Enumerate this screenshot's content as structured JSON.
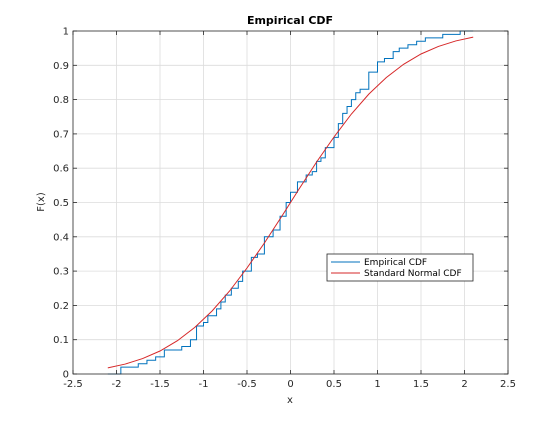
{
  "chart_data": {
    "type": "line",
    "title": "Empirical CDF",
    "xlabel": "x",
    "ylabel": "F(x)",
    "xlim": [
      -2.5,
      2.5
    ],
    "ylim": [
      0,
      1
    ],
    "xticks": [
      -2.5,
      -2,
      -1.5,
      -1,
      -0.5,
      0,
      0.5,
      1,
      1.5,
      2,
      2.5
    ],
    "xtick_labels": [
      "-2.5",
      "-2",
      "-1.5",
      "-1",
      "-0.5",
      "0",
      "0.5",
      "1",
      "1.5",
      "2",
      "2.5"
    ],
    "yticks": [
      0,
      0.1,
      0.2,
      0.3,
      0.4,
      0.5,
      0.6,
      0.7,
      0.8,
      0.9,
      1
    ],
    "ytick_labels": [
      "0",
      "0.1",
      "0.2",
      "0.3",
      "0.4",
      "0.5",
      "0.6",
      "0.7",
      "0.8",
      "0.9",
      "1"
    ],
    "grid": true,
    "legend_position": "lower-right",
    "series": [
      {
        "name": "Empirical CDF",
        "kind": "step",
        "color": "#0072bd",
        "x": [
          -2.1,
          -1.95,
          -1.75,
          -1.65,
          -1.55,
          -1.45,
          -1.25,
          -1.15,
          -1.08,
          -1.0,
          -0.95,
          -0.85,
          -0.8,
          -0.75,
          -0.68,
          -0.6,
          -0.55,
          -0.45,
          -0.38,
          -0.3,
          -0.2,
          -0.12,
          -0.05,
          0.0,
          0.08,
          0.18,
          0.25,
          0.3,
          0.35,
          0.4,
          0.5,
          0.55,
          0.6,
          0.65,
          0.7,
          0.75,
          0.8,
          0.9,
          1.0,
          1.08,
          1.18,
          1.25,
          1.35,
          1.45,
          1.55,
          1.65,
          1.75,
          1.85,
          1.95,
          2.1
        ],
        "y": [
          0.0,
          0.02,
          0.03,
          0.04,
          0.05,
          0.07,
          0.08,
          0.1,
          0.14,
          0.15,
          0.17,
          0.19,
          0.21,
          0.23,
          0.25,
          0.27,
          0.3,
          0.34,
          0.35,
          0.4,
          0.42,
          0.46,
          0.5,
          0.53,
          0.56,
          0.58,
          0.59,
          0.62,
          0.63,
          0.66,
          0.69,
          0.73,
          0.76,
          0.78,
          0.8,
          0.82,
          0.83,
          0.88,
          0.91,
          0.92,
          0.94,
          0.95,
          0.96,
          0.97,
          0.98,
          0.98,
          0.99,
          0.99,
          1.0,
          1.0
        ]
      },
      {
        "name": "Standard Normal CDF",
        "kind": "line",
        "color": "#d62728",
        "x": [
          -2.1,
          -1.9,
          -1.7,
          -1.5,
          -1.3,
          -1.1,
          -0.9,
          -0.7,
          -0.5,
          -0.3,
          -0.1,
          0.0,
          0.1,
          0.3,
          0.5,
          0.7,
          0.9,
          1.1,
          1.3,
          1.5,
          1.7,
          1.9,
          2.1
        ],
        "y": [
          0.018,
          0.029,
          0.045,
          0.067,
          0.097,
          0.136,
          0.184,
          0.242,
          0.309,
          0.382,
          0.46,
          0.5,
          0.54,
          0.618,
          0.691,
          0.758,
          0.816,
          0.864,
          0.903,
          0.933,
          0.955,
          0.971,
          0.982
        ]
      }
    ]
  }
}
